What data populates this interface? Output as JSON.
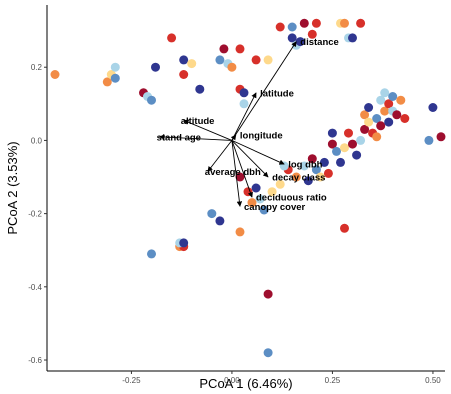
{
  "chart_data": {
    "type": "scatter",
    "xlabel": "PCoA 1 (6.46%)",
    "ylabel": "PCoA 2 (3.53%)",
    "xlim": [
      -0.46,
      0.53
    ],
    "ylim": [
      -0.63,
      0.37
    ],
    "x_ticks": [
      -0.25,
      0.0,
      0.25,
      0.5
    ],
    "x_tick_labels": [
      "-0.25",
      "0.00",
      "0.25",
      "0.50"
    ],
    "y_ticks": [
      -0.6,
      -0.4,
      -0.2,
      0.0,
      0.2
    ],
    "y_tick_labels": [
      "-0.6",
      "-0.4",
      "-0.2",
      "0.0",
      "0.2"
    ],
    "grid": false,
    "legend": "none",
    "colors": {
      "dark_red": "#9e0e2e",
      "red": "#d7302a",
      "orange": "#f28c46",
      "light_orange": "#fed98b",
      "light_blue": "#a9d4e8",
      "blue": "#5c8ec4",
      "navy": "#2f3690"
    },
    "points": [
      {
        "x": -0.44,
        "y": 0.18,
        "c": "orange"
      },
      {
        "x": -0.31,
        "y": 0.16,
        "c": "orange"
      },
      {
        "x": -0.3,
        "y": 0.18,
        "c": "light_orange"
      },
      {
        "x": -0.29,
        "y": 0.2,
        "c": "light_blue"
      },
      {
        "x": -0.29,
        "y": 0.17,
        "c": "blue"
      },
      {
        "x": -0.22,
        "y": 0.13,
        "c": "dark_red"
      },
      {
        "x": -0.21,
        "y": 0.12,
        "c": "light_blue"
      },
      {
        "x": -0.2,
        "y": 0.11,
        "c": "blue"
      },
      {
        "x": -0.19,
        "y": 0.2,
        "c": "navy"
      },
      {
        "x": -0.15,
        "y": 0.28,
        "c": "red"
      },
      {
        "x": -0.12,
        "y": 0.22,
        "c": "navy"
      },
      {
        "x": -0.12,
        "y": 0.18,
        "c": "red"
      },
      {
        "x": -0.1,
        "y": 0.21,
        "c": "light_orange"
      },
      {
        "x": -0.08,
        "y": 0.14,
        "c": "navy"
      },
      {
        "x": -0.03,
        "y": 0.22,
        "c": "blue"
      },
      {
        "x": -0.02,
        "y": 0.25,
        "c": "dark_red"
      },
      {
        "x": -0.01,
        "y": 0.21,
        "c": "light_blue"
      },
      {
        "x": 0.0,
        "y": 0.2,
        "c": "orange"
      },
      {
        "x": 0.02,
        "y": 0.25,
        "c": "red"
      },
      {
        "x": 0.02,
        "y": 0.14,
        "c": "red"
      },
      {
        "x": 0.03,
        "y": 0.1,
        "c": "light_blue"
      },
      {
        "x": 0.03,
        "y": 0.13,
        "c": "navy"
      },
      {
        "x": 0.06,
        "y": 0.22,
        "c": "red"
      },
      {
        "x": 0.09,
        "y": 0.22,
        "c": "light_orange"
      },
      {
        "x": 0.12,
        "y": 0.31,
        "c": "red"
      },
      {
        "x": 0.15,
        "y": 0.28,
        "c": "navy"
      },
      {
        "x": 0.15,
        "y": 0.31,
        "c": "blue"
      },
      {
        "x": 0.16,
        "y": 0.26,
        "c": "light_blue"
      },
      {
        "x": 0.17,
        "y": 0.27,
        "c": "navy"
      },
      {
        "x": 0.18,
        "y": 0.32,
        "c": "dark_red"
      },
      {
        "x": 0.2,
        "y": 0.29,
        "c": "red"
      },
      {
        "x": 0.21,
        "y": 0.32,
        "c": "red"
      },
      {
        "x": 0.27,
        "y": 0.32,
        "c": "light_orange"
      },
      {
        "x": 0.28,
        "y": 0.32,
        "c": "orange"
      },
      {
        "x": 0.29,
        "y": 0.28,
        "c": "light_blue"
      },
      {
        "x": 0.3,
        "y": 0.28,
        "c": "navy"
      },
      {
        "x": 0.32,
        "y": 0.32,
        "c": "red"
      },
      {
        "x": 0.25,
        "y": 0.02,
        "c": "navy"
      },
      {
        "x": 0.25,
        "y": -0.01,
        "c": "dark_red"
      },
      {
        "x": 0.26,
        "y": -0.03,
        "c": "blue"
      },
      {
        "x": 0.27,
        "y": -0.06,
        "c": "navy"
      },
      {
        "x": 0.28,
        "y": -0.02,
        "c": "light_orange"
      },
      {
        "x": 0.29,
        "y": 0.02,
        "c": "red"
      },
      {
        "x": 0.3,
        "y": -0.01,
        "c": "dark_red"
      },
      {
        "x": 0.31,
        "y": -0.04,
        "c": "navy"
      },
      {
        "x": 0.32,
        "y": 0.0,
        "c": "light_blue"
      },
      {
        "x": 0.33,
        "y": 0.03,
        "c": "dark_red"
      },
      {
        "x": 0.33,
        "y": 0.07,
        "c": "orange"
      },
      {
        "x": 0.34,
        "y": 0.05,
        "c": "light_orange"
      },
      {
        "x": 0.34,
        "y": 0.09,
        "c": "navy"
      },
      {
        "x": 0.35,
        "y": 0.02,
        "c": "red"
      },
      {
        "x": 0.36,
        "y": 0.06,
        "c": "blue"
      },
      {
        "x": 0.37,
        "y": 0.11,
        "c": "light_blue"
      },
      {
        "x": 0.37,
        "y": 0.04,
        "c": "dark_red"
      },
      {
        "x": 0.38,
        "y": 0.08,
        "c": "orange"
      },
      {
        "x": 0.38,
        "y": 0.13,
        "c": "light_blue"
      },
      {
        "x": 0.39,
        "y": 0.05,
        "c": "navy"
      },
      {
        "x": 0.39,
        "y": 0.1,
        "c": "red"
      },
      {
        "x": 0.4,
        "y": 0.08,
        "c": "light_blue"
      },
      {
        "x": 0.4,
        "y": 0.12,
        "c": "blue"
      },
      {
        "x": 0.41,
        "y": 0.07,
        "c": "dark_red"
      },
      {
        "x": 0.42,
        "y": 0.11,
        "c": "orange"
      },
      {
        "x": 0.43,
        "y": 0.06,
        "c": "red"
      },
      {
        "x": 0.36,
        "y": 0.01,
        "c": "orange"
      },
      {
        "x": 0.5,
        "y": 0.09,
        "c": "navy"
      },
      {
        "x": 0.49,
        "y": 0.0,
        "c": "blue"
      },
      {
        "x": 0.52,
        "y": 0.01,
        "c": "dark_red"
      },
      {
        "x": 0.14,
        "y": -0.08,
        "c": "red"
      },
      {
        "x": 0.16,
        "y": -0.1,
        "c": "orange"
      },
      {
        "x": 0.18,
        "y": -0.07,
        "c": "light_blue"
      },
      {
        "x": 0.19,
        "y": -0.11,
        "c": "navy"
      },
      {
        "x": 0.2,
        "y": -0.05,
        "c": "dark_red"
      },
      {
        "x": 0.21,
        "y": -0.08,
        "c": "blue"
      },
      {
        "x": 0.22,
        "y": -0.1,
        "c": "light_orange"
      },
      {
        "x": 0.23,
        "y": -0.06,
        "c": "navy"
      },
      {
        "x": 0.24,
        "y": -0.09,
        "c": "red"
      },
      {
        "x": 0.12,
        "y": -0.12,
        "c": "light_orange"
      },
      {
        "x": 0.13,
        "y": -0.07,
        "c": "light_blue"
      },
      {
        "x": 0.04,
        "y": -0.14,
        "c": "red"
      },
      {
        "x": 0.05,
        "y": -0.17,
        "c": "orange"
      },
      {
        "x": 0.06,
        "y": -0.13,
        "c": "navy"
      },
      {
        "x": 0.07,
        "y": -0.16,
        "c": "light_blue"
      },
      {
        "x": 0.08,
        "y": -0.19,
        "c": "blue"
      },
      {
        "x": 0.02,
        "y": -0.1,
        "c": "dark_red"
      },
      {
        "x": 0.1,
        "y": -0.14,
        "c": "light_orange"
      },
      {
        "x": -0.05,
        "y": -0.2,
        "c": "blue"
      },
      {
        "x": -0.03,
        "y": -0.22,
        "c": "navy"
      },
      {
        "x": 0.02,
        "y": -0.25,
        "c": "orange"
      },
      {
        "x": -0.13,
        "y": -0.29,
        "c": "orange"
      },
      {
        "x": -0.12,
        "y": -0.29,
        "c": "red"
      },
      {
        "x": -0.13,
        "y": -0.28,
        "c": "light_blue"
      },
      {
        "x": -0.12,
        "y": -0.28,
        "c": "navy"
      },
      {
        "x": -0.2,
        "y": -0.31,
        "c": "blue"
      },
      {
        "x": 0.28,
        "y": -0.24,
        "c": "red"
      },
      {
        "x": 0.09,
        "y": -0.42,
        "c": "dark_red"
      },
      {
        "x": 0.09,
        "y": -0.58,
        "c": "blue"
      }
    ],
    "vectors": [
      {
        "label": "distance",
        "x": 0.16,
        "y": 0.27
      },
      {
        "label": "latitude",
        "x": 0.06,
        "y": 0.13
      },
      {
        "label": "altitude",
        "x": -0.12,
        "y": 0.055
      },
      {
        "label": "stand age",
        "x": -0.18,
        "y": 0.01
      },
      {
        "label": "longitude",
        "x": 0.01,
        "y": 0.015
      },
      {
        "label": "log dbh",
        "x": 0.13,
        "y": -0.065
      },
      {
        "label": "decay class",
        "x": 0.09,
        "y": -0.1
      },
      {
        "label": "average dbh",
        "x": -0.06,
        "y": -0.085
      },
      {
        "label": "deciduous ratio",
        "x": 0.05,
        "y": -0.155
      },
      {
        "label": "canopy cover",
        "x": 0.02,
        "y": -0.18
      }
    ],
    "vector_origin": [
      0.0,
      0.0
    ]
  }
}
